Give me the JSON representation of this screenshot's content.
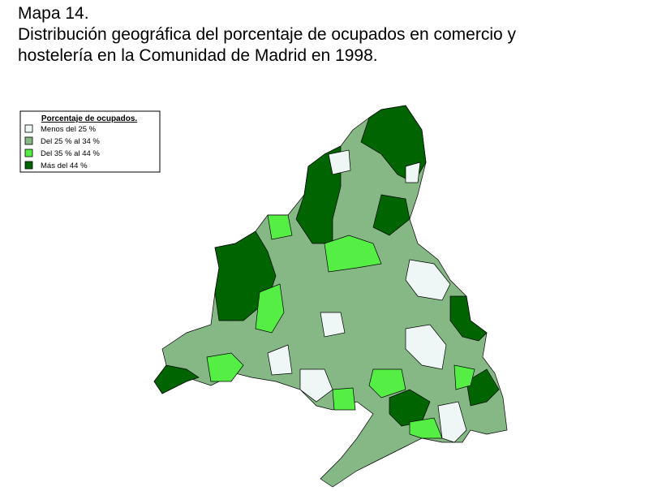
{
  "header": {
    "lines": [
      "Mapa 14.",
      "Distribución geográfica del porcentaje de ocupados en comercio y",
      "hostelería en la Comunidad de Madrid en 1998."
    ]
  },
  "legend": {
    "title": "Porcentaje de ocupados.",
    "items": [
      {
        "label": "Menos del 25 %",
        "color": "#eef6f6"
      },
      {
        "label": "Del 25 % al 34 %",
        "color": "#86b886"
      },
      {
        "label": "Del 35 % al 44 %",
        "color": "#55ee44"
      },
      {
        "label": "Más del 44 %",
        "color": "#006400"
      }
    ]
  }
}
